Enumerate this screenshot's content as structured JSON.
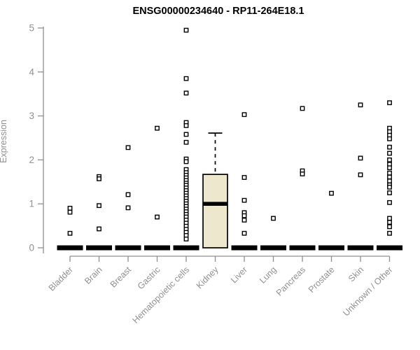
{
  "chart_data": {
    "type": "boxplot",
    "title": "ENSG00000234640 - RP11-264E18.1",
    "ylabel": "Expression",
    "xlabel": "",
    "ylim": [
      0,
      5
    ],
    "yticks": [
      0,
      1,
      2,
      3,
      4,
      5
    ],
    "grid": false,
    "legend": "none",
    "axis_color": "#909090",
    "point_color": "#000000",
    "box_fill": "#ece7cd",
    "categories": [
      "Bladder",
      "Brain",
      "Breast",
      "Gastric",
      "Hematopoietic cells",
      "Kidney",
      "Liver",
      "Lung",
      "Pancreas",
      "Prostate",
      "Skin",
      "Unknown / Other"
    ],
    "note": "All categories except Kidney have boxplots collapsed to a thick bar at 0; open-square jitter points show individual samples",
    "groups": [
      {
        "label": "Bladder",
        "box": {
          "whisker_low": 0,
          "q1": 0,
          "median": 0,
          "q3": 0,
          "whisker_high": 0
        },
        "points": [
          0.9,
          0.81,
          0.33
        ]
      },
      {
        "label": "Brain",
        "box": {
          "whisker_low": 0,
          "q1": 0,
          "median": 0,
          "q3": 0,
          "whisker_high": 0
        },
        "points": [
          1.62,
          1.57,
          0.96,
          0.43
        ]
      },
      {
        "label": "Breast",
        "box": {
          "whisker_low": 0,
          "q1": 0,
          "median": 0,
          "q3": 0,
          "whisker_high": 0
        },
        "points": [
          2.28,
          1.21,
          0.91
        ]
      },
      {
        "label": "Gastric",
        "box": {
          "whisker_low": 0,
          "q1": 0,
          "median": 0,
          "q3": 0,
          "whisker_high": 0
        },
        "points": [
          2.72,
          0.7
        ]
      },
      {
        "label": "Hematopoietic cells",
        "box": {
          "whisker_low": 0,
          "q1": 0,
          "median": 0,
          "q3": 0,
          "whisker_high": 0
        },
        "points": [
          4.95,
          3.85,
          3.52,
          2.85,
          2.78,
          2.58,
          2.4,
          2.02,
          1.96,
          1.78,
          1.71,
          1.65,
          1.59,
          1.53,
          1.47,
          1.42,
          1.36,
          1.3,
          1.24,
          1.18,
          1.12,
          1.06,
          1.0,
          0.94,
          0.88,
          0.82,
          0.76,
          0.7,
          0.63,
          0.56,
          0.49,
          0.42,
          0.35,
          0.28,
          0.2
        ]
      },
      {
        "label": "Kidney",
        "box": {
          "whisker_low": 0,
          "q1": 0,
          "median": 1.0,
          "q3": 1.67,
          "whisker_high": 2.61
        },
        "points": []
      },
      {
        "label": "Liver",
        "box": {
          "whisker_low": 0,
          "q1": 0,
          "median": 0,
          "q3": 0,
          "whisker_high": 0
        },
        "points": [
          3.03,
          1.6,
          1.08,
          0.8,
          0.73,
          0.63,
          0.33
        ]
      },
      {
        "label": "Lung",
        "box": {
          "whisker_low": 0,
          "q1": 0,
          "median": 0,
          "q3": 0,
          "whisker_high": 0
        },
        "points": [
          0.67
        ]
      },
      {
        "label": "Pancreas",
        "box": {
          "whisker_low": 0,
          "q1": 0,
          "median": 0,
          "q3": 0,
          "whisker_high": 0
        },
        "points": [
          3.17,
          1.75,
          1.68
        ]
      },
      {
        "label": "Prostate",
        "box": {
          "whisker_low": 0,
          "q1": 0,
          "median": 0,
          "q3": 0,
          "whisker_high": 0
        },
        "points": [
          1.24
        ]
      },
      {
        "label": "Skin",
        "box": {
          "whisker_low": 0,
          "q1": 0,
          "median": 0,
          "q3": 0,
          "whisker_high": 0
        },
        "points": [
          3.25,
          2.04,
          1.66
        ]
      },
      {
        "label": "Unknown / Other",
        "box": {
          "whisker_low": 0,
          "q1": 0,
          "median": 0,
          "q3": 0,
          "whisker_high": 0
        },
        "points": [
          3.3,
          2.72,
          2.64,
          2.56,
          2.48,
          2.29,
          2.15,
          2.0,
          1.9,
          1.82,
          1.7,
          1.61,
          1.52,
          1.43,
          1.38,
          1.25,
          1.03,
          0.67,
          0.58,
          0.48,
          0.33
        ]
      }
    ]
  }
}
